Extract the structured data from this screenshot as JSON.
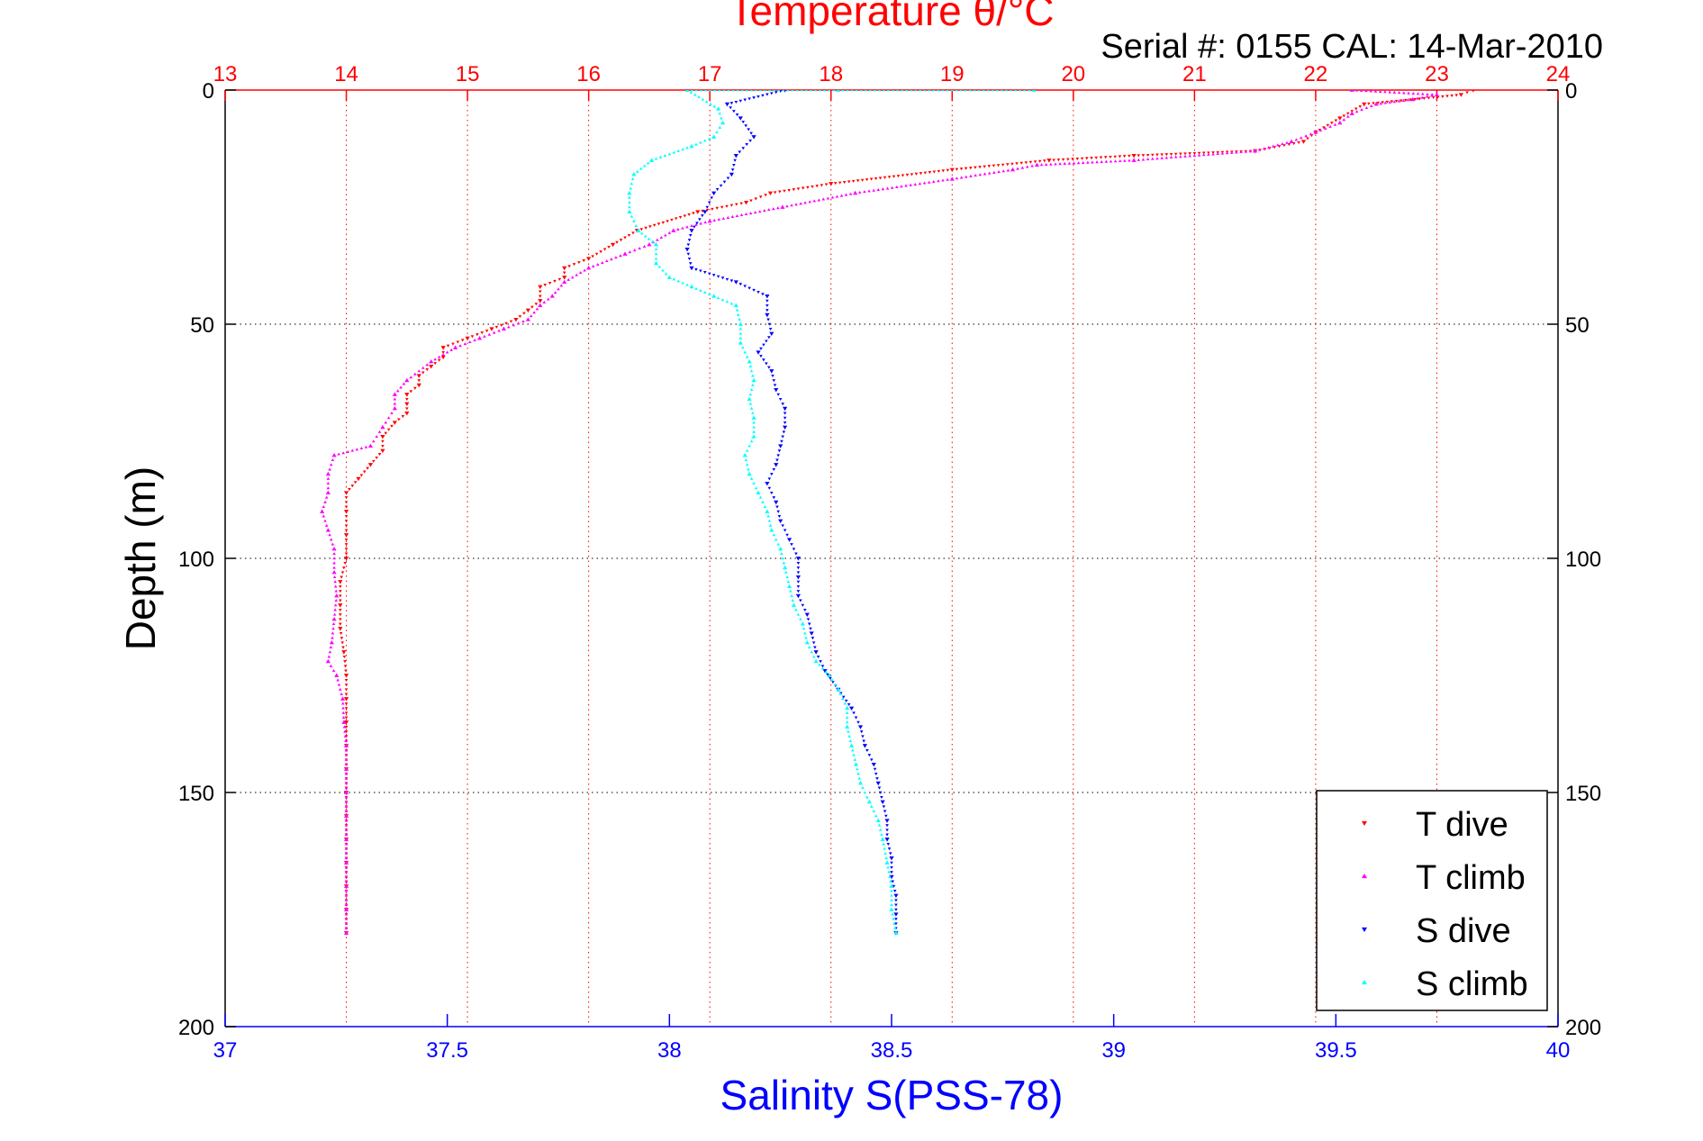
{
  "chart_data": {
    "type": "scatter",
    "title": "Temperature θ/°C",
    "subtitle": "Serial #: 0155  CAL: 14-Mar-2010",
    "ylabel": "Depth (m)",
    "xlabel_bottom": "Salinity S(PSS-78)",
    "xlabel_top": "Temperature θ/°C",
    "y_range": [
      0,
      200
    ],
    "y_reversed": true,
    "y_ticks": [
      0,
      50,
      100,
      150,
      200
    ],
    "y_tick_labels": [
      "0",
      "50",
      "100",
      "150",
      "200"
    ],
    "x_top_range": [
      13,
      24
    ],
    "x_top_ticks": [
      13,
      14,
      15,
      16,
      17,
      18,
      19,
      20,
      21,
      22,
      23,
      24
    ],
    "x_top_tick_labels": [
      "13",
      "14",
      "15",
      "16",
      "17",
      "18",
      "19",
      "20",
      "21",
      "22",
      "23",
      "24"
    ],
    "x_bottom_range": [
      37,
      40
    ],
    "x_bottom_ticks": [
      37,
      37.5,
      38,
      38.5,
      39,
      39.5,
      40
    ],
    "x_bottom_tick_labels": [
      "37",
      "37.5",
      "38",
      "38.5",
      "39",
      "39.5",
      "40"
    ],
    "grid": true,
    "legend_position": "bottom-right",
    "colors": {
      "temperature_axis": "#ff0000",
      "salinity_axis": "#0000ff",
      "horizontal_grid": "#000000"
    },
    "series": [
      {
        "name": "T dive",
        "axis": "top",
        "marker": "down-triangle",
        "color": "#ff0000",
        "points": [
          [
            23.3,
            0
          ],
          [
            23.2,
            1
          ],
          [
            22.4,
            3
          ],
          [
            22.2,
            6
          ],
          [
            22.0,
            9
          ],
          [
            21.9,
            11
          ],
          [
            21.5,
            13
          ],
          [
            20.5,
            14
          ],
          [
            19.8,
            15
          ],
          [
            19.0,
            17
          ],
          [
            18.0,
            20
          ],
          [
            17.5,
            22
          ],
          [
            17.3,
            24
          ],
          [
            16.9,
            26
          ],
          [
            16.4,
            30
          ],
          [
            16.2,
            33
          ],
          [
            16.0,
            36
          ],
          [
            15.8,
            38
          ],
          [
            15.8,
            40
          ],
          [
            15.6,
            42
          ],
          [
            15.6,
            45
          ],
          [
            15.5,
            47
          ],
          [
            15.4,
            49
          ],
          [
            15.2,
            51
          ],
          [
            15.0,
            53
          ],
          [
            14.8,
            55
          ],
          [
            14.8,
            57
          ],
          [
            14.7,
            59
          ],
          [
            14.6,
            61
          ],
          [
            14.6,
            63
          ],
          [
            14.5,
            65
          ],
          [
            14.5,
            67
          ],
          [
            14.5,
            69
          ],
          [
            14.4,
            71
          ],
          [
            14.3,
            74
          ],
          [
            14.3,
            77
          ],
          [
            14.2,
            80
          ],
          [
            14.1,
            83
          ],
          [
            14.0,
            86
          ],
          [
            14.0,
            90
          ],
          [
            14.0,
            95
          ],
          [
            14.0,
            100
          ],
          [
            13.95,
            105
          ],
          [
            13.95,
            110
          ],
          [
            13.95,
            115
          ],
          [
            13.98,
            120
          ],
          [
            14.0,
            125
          ],
          [
            14.0,
            130
          ],
          [
            14.0,
            135
          ],
          [
            14.0,
            140
          ],
          [
            14.0,
            145
          ],
          [
            14.0,
            150
          ],
          [
            14.0,
            155
          ],
          [
            14.0,
            160
          ],
          [
            14.0,
            165
          ],
          [
            14.0,
            170
          ],
          [
            14.0,
            175
          ],
          [
            14.0,
            180
          ]
        ]
      },
      {
        "name": "T climb",
        "axis": "top",
        "marker": "up-triangle",
        "color": "#ff00ff",
        "points": [
          [
            14.0,
            180
          ],
          [
            14.0,
            175
          ],
          [
            14.0,
            170
          ],
          [
            14.0,
            165
          ],
          [
            14.0,
            160
          ],
          [
            14.0,
            155
          ],
          [
            14.0,
            150
          ],
          [
            14.0,
            145
          ],
          [
            14.0,
            140
          ],
          [
            13.98,
            135
          ],
          [
            13.97,
            130
          ],
          [
            13.92,
            125
          ],
          [
            13.85,
            122
          ],
          [
            13.88,
            118
          ],
          [
            13.9,
            113
          ],
          [
            13.92,
            108
          ],
          [
            13.9,
            103
          ],
          [
            13.9,
            98
          ],
          [
            13.85,
            94
          ],
          [
            13.8,
            90
          ],
          [
            13.85,
            86
          ],
          [
            13.85,
            82
          ],
          [
            13.9,
            78
          ],
          [
            14.2,
            76
          ],
          [
            14.3,
            72
          ],
          [
            14.4,
            68
          ],
          [
            14.4,
            65
          ],
          [
            14.5,
            62
          ],
          [
            14.7,
            58
          ],
          [
            14.9,
            55
          ],
          [
            15.1,
            53
          ],
          [
            15.3,
            51
          ],
          [
            15.5,
            49
          ],
          [
            15.6,
            46
          ],
          [
            15.7,
            44
          ],
          [
            15.8,
            41
          ],
          [
            16.0,
            38
          ],
          [
            16.3,
            35
          ],
          [
            16.5,
            33
          ],
          [
            16.7,
            30
          ],
          [
            17.0,
            28
          ],
          [
            17.6,
            25
          ],
          [
            18.2,
            22
          ],
          [
            19.0,
            19
          ],
          [
            19.5,
            17
          ],
          [
            19.7,
            16
          ],
          [
            20.5,
            15
          ],
          [
            21.5,
            13
          ],
          [
            21.8,
            11
          ],
          [
            22.0,
            9
          ],
          [
            22.2,
            7
          ],
          [
            22.3,
            5
          ],
          [
            22.5,
            3
          ],
          [
            22.8,
            2
          ],
          [
            23.0,
            1
          ],
          [
            22.3,
            0
          ]
        ]
      },
      {
        "name": "S dive",
        "axis": "bottom",
        "marker": "down-triangle",
        "color": "#0000ff",
        "points": [
          [
            38.26,
            0
          ],
          [
            38.13,
            3
          ],
          [
            38.16,
            6
          ],
          [
            38.19,
            10
          ],
          [
            38.15,
            14
          ],
          [
            38.14,
            18
          ],
          [
            38.1,
            22
          ],
          [
            38.08,
            26
          ],
          [
            38.05,
            30
          ],
          [
            38.04,
            34
          ],
          [
            38.05,
            38
          ],
          [
            38.15,
            41
          ],
          [
            38.22,
            44
          ],
          [
            38.22,
            48
          ],
          [
            38.23,
            52
          ],
          [
            38.2,
            56
          ],
          [
            38.23,
            60
          ],
          [
            38.24,
            64
          ],
          [
            38.26,
            68
          ],
          [
            38.26,
            72
          ],
          [
            38.25,
            76
          ],
          [
            38.24,
            80
          ],
          [
            38.22,
            84
          ],
          [
            38.24,
            88
          ],
          [
            38.25,
            92
          ],
          [
            38.27,
            96
          ],
          [
            38.29,
            100
          ],
          [
            38.29,
            104
          ],
          [
            38.29,
            108
          ],
          [
            38.31,
            112
          ],
          [
            38.32,
            116
          ],
          [
            38.33,
            120
          ],
          [
            38.35,
            124
          ],
          [
            38.38,
            128
          ],
          [
            38.41,
            132
          ],
          [
            38.43,
            136
          ],
          [
            38.44,
            140
          ],
          [
            38.46,
            144
          ],
          [
            38.47,
            148
          ],
          [
            38.48,
            152
          ],
          [
            38.49,
            156
          ],
          [
            38.49,
            160
          ],
          [
            38.5,
            164
          ],
          [
            38.5,
            168
          ],
          [
            38.51,
            172
          ],
          [
            38.51,
            176
          ],
          [
            38.51,
            180
          ]
        ]
      },
      {
        "name": "S climb",
        "axis": "bottom",
        "marker": "up-triangle",
        "color": "#00ffff",
        "points": [
          [
            38.51,
            180
          ],
          [
            38.5,
            175
          ],
          [
            38.5,
            170
          ],
          [
            38.49,
            165
          ],
          [
            38.48,
            160
          ],
          [
            38.47,
            156
          ],
          [
            38.45,
            152
          ],
          [
            38.43,
            148
          ],
          [
            38.42,
            144
          ],
          [
            38.41,
            140
          ],
          [
            38.4,
            136
          ],
          [
            38.4,
            132
          ],
          [
            38.38,
            128
          ],
          [
            38.36,
            125
          ],
          [
            38.33,
            122
          ],
          [
            38.31,
            118
          ],
          [
            38.3,
            114
          ],
          [
            38.28,
            110
          ],
          [
            38.27,
            106
          ],
          [
            38.26,
            102
          ],
          [
            38.25,
            98
          ],
          [
            38.23,
            94
          ],
          [
            38.22,
            90
          ],
          [
            38.2,
            86
          ],
          [
            38.18,
            82
          ],
          [
            38.17,
            78
          ],
          [
            38.19,
            74
          ],
          [
            38.19,
            70
          ],
          [
            38.18,
            66
          ],
          [
            38.19,
            62
          ],
          [
            38.18,
            58
          ],
          [
            38.16,
            54
          ],
          [
            38.16,
            50
          ],
          [
            38.15,
            46
          ],
          [
            38.1,
            44
          ],
          [
            38.05,
            42
          ],
          [
            38.0,
            40
          ],
          [
            37.97,
            37
          ],
          [
            37.97,
            33
          ],
          [
            37.93,
            30
          ],
          [
            37.91,
            26
          ],
          [
            37.91,
            22
          ],
          [
            37.92,
            18
          ],
          [
            37.96,
            15
          ],
          [
            38.05,
            12
          ],
          [
            38.1,
            10
          ],
          [
            38.12,
            7
          ],
          [
            38.11,
            4
          ],
          [
            38.04,
            0
          ],
          [
            38.38,
            0
          ],
          [
            38.82,
            0
          ]
        ]
      }
    ]
  }
}
